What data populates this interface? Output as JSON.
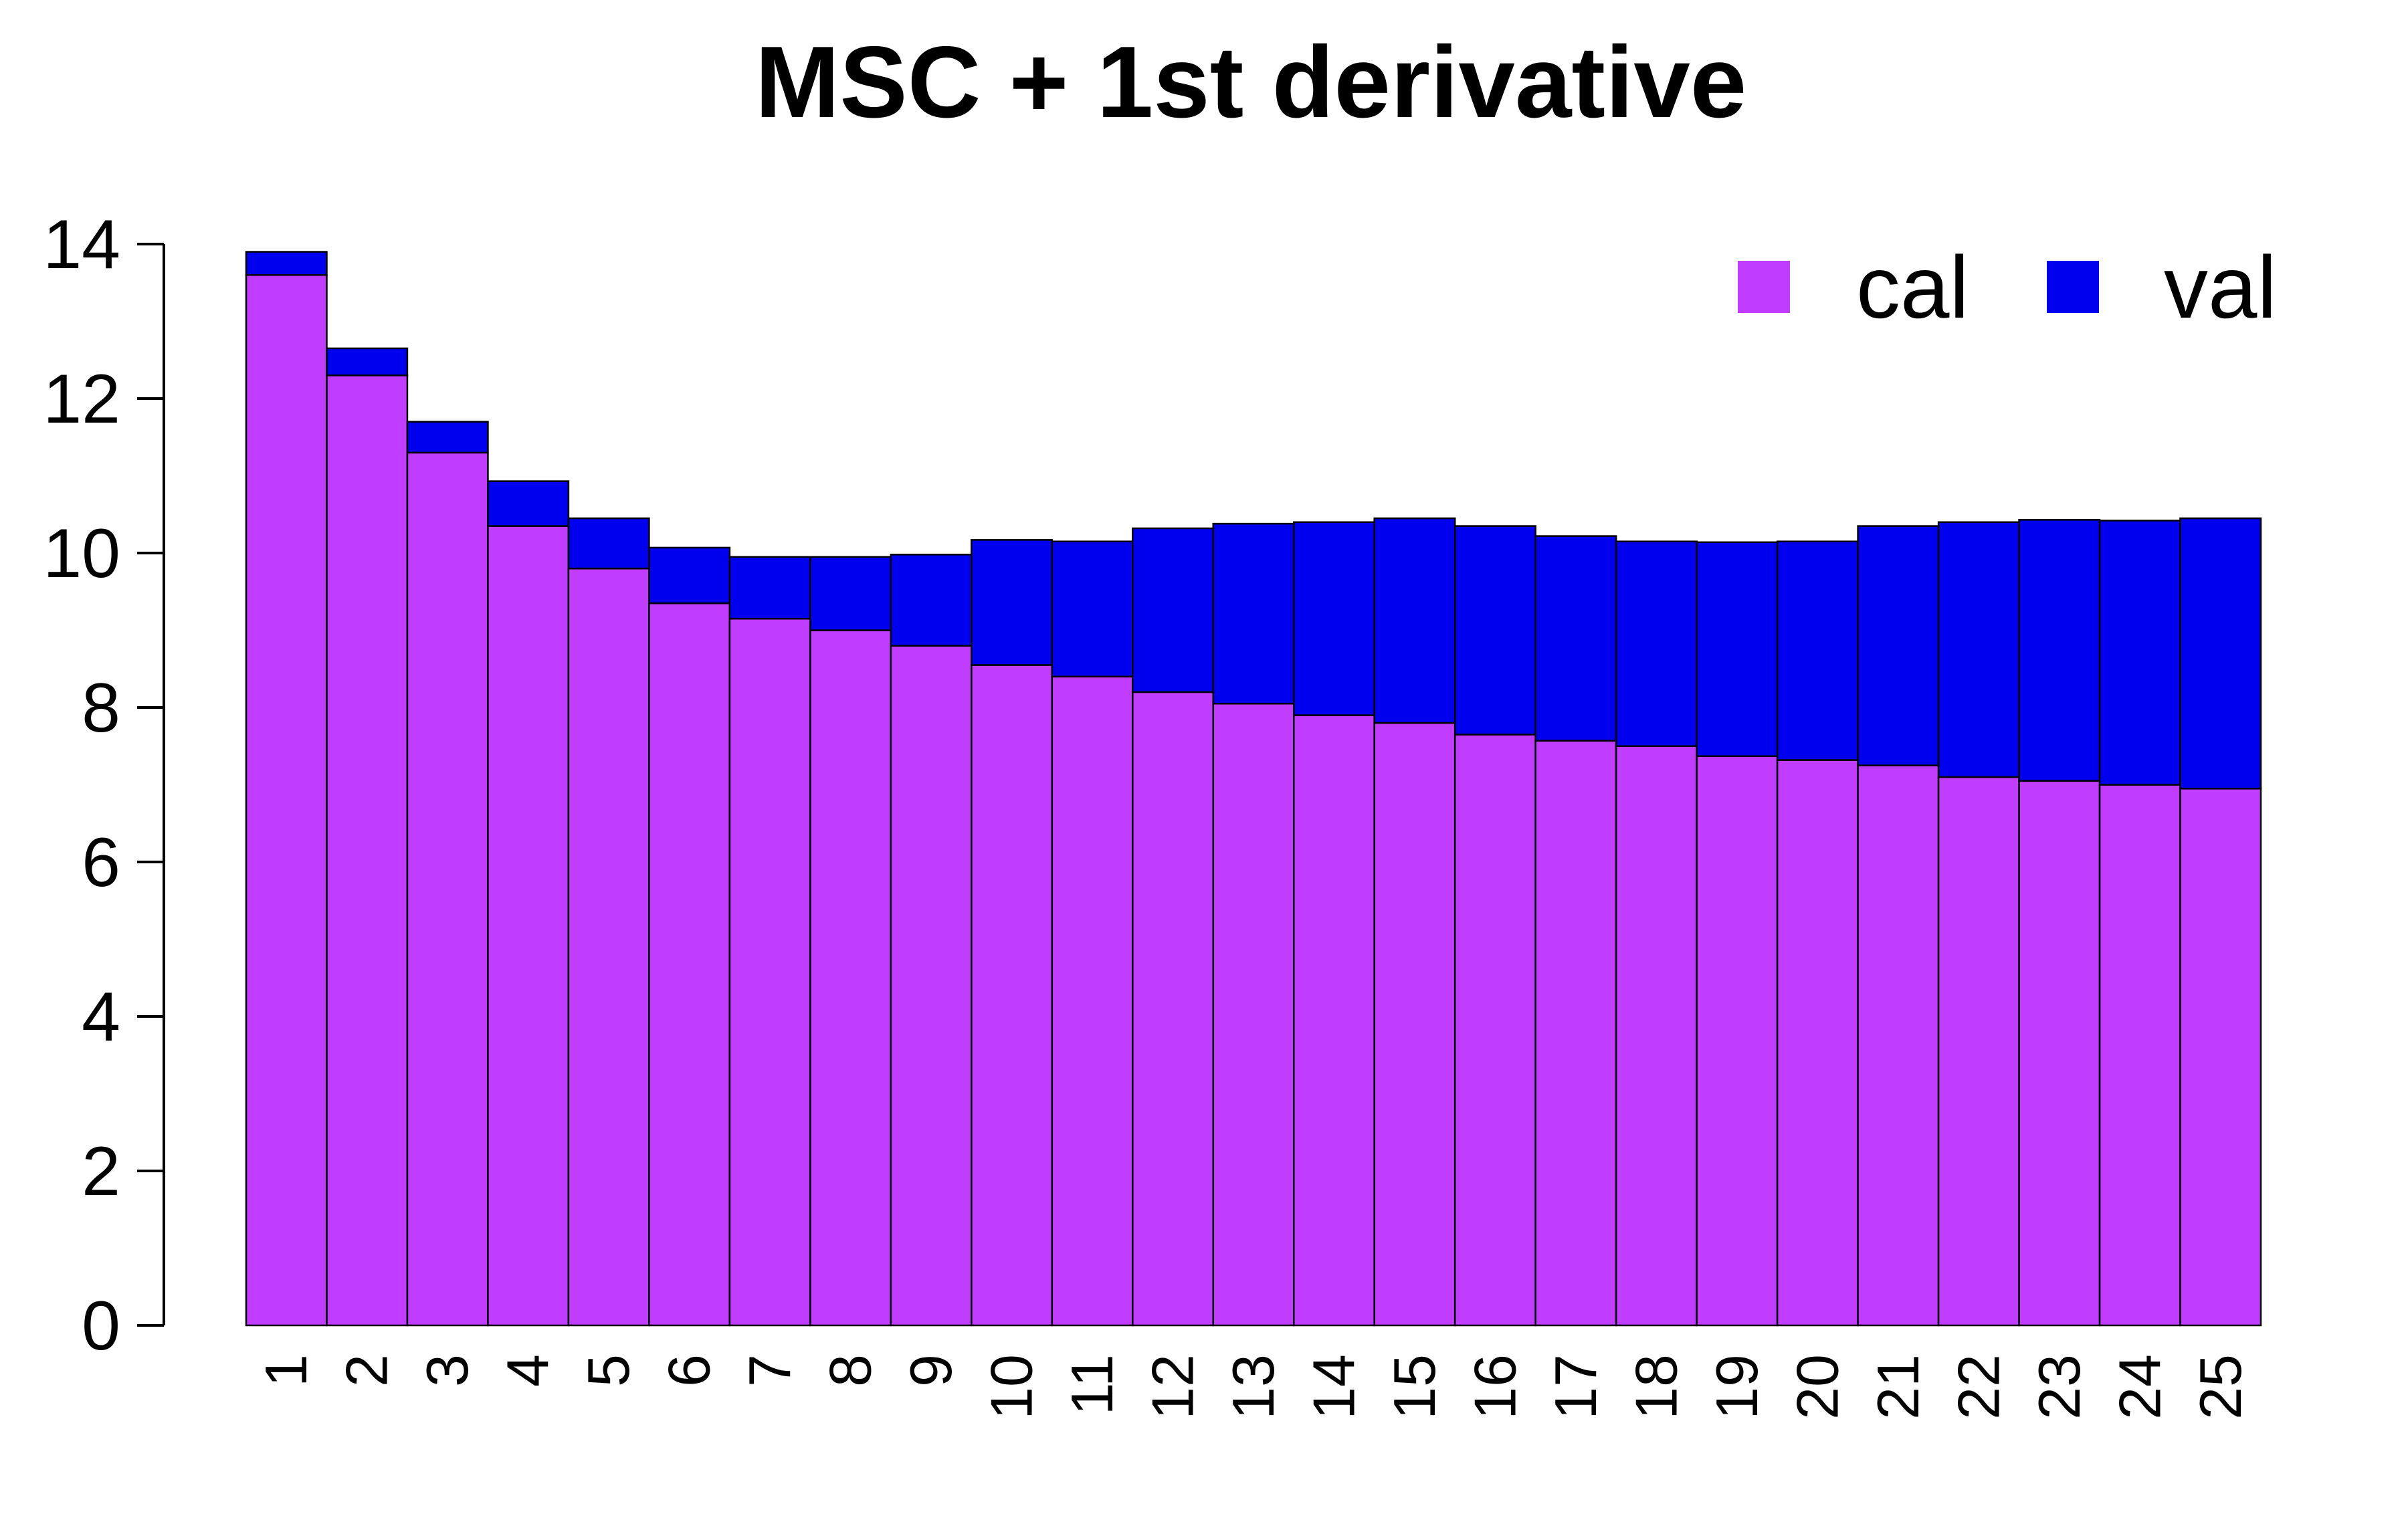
{
  "chart_data": {
    "type": "bar",
    "stacked": true,
    "title": "MSC + 1st derivative",
    "xlabel": "",
    "ylabel": "",
    "categories": [
      "1",
      "2",
      "3",
      "4",
      "5",
      "6",
      "7",
      "8",
      "9",
      "10",
      "11",
      "12",
      "13",
      "14",
      "15",
      "16",
      "17",
      "18",
      "19",
      "20",
      "21",
      "22",
      "23",
      "24",
      "25"
    ],
    "series": [
      {
        "name": "cal",
        "color": "#c03cff",
        "values": [
          13.6,
          12.3,
          11.3,
          10.35,
          9.8,
          9.35,
          9.15,
          9.0,
          8.8,
          8.55,
          8.4,
          8.2,
          8.05,
          7.9,
          7.8,
          7.65,
          7.57,
          7.5,
          7.37,
          7.32,
          7.25,
          7.1,
          7.05,
          7.0,
          6.95
        ]
      },
      {
        "name": "val",
        "color": "#0000ee",
        "values": [
          0.3,
          0.35,
          0.4,
          0.58,
          0.65,
          0.72,
          0.8,
          0.95,
          1.18,
          1.62,
          1.75,
          2.12,
          2.33,
          2.5,
          2.65,
          2.7,
          2.65,
          2.65,
          2.77,
          2.83,
          3.1,
          3.3,
          3.38,
          3.42,
          3.5
        ]
      }
    ],
    "ylim": [
      0,
      14
    ],
    "yticks": [
      "0",
      "2",
      "4",
      "6",
      "8",
      "10",
      "12",
      "14"
    ],
    "grid": false,
    "legend_position": "top-right"
  }
}
